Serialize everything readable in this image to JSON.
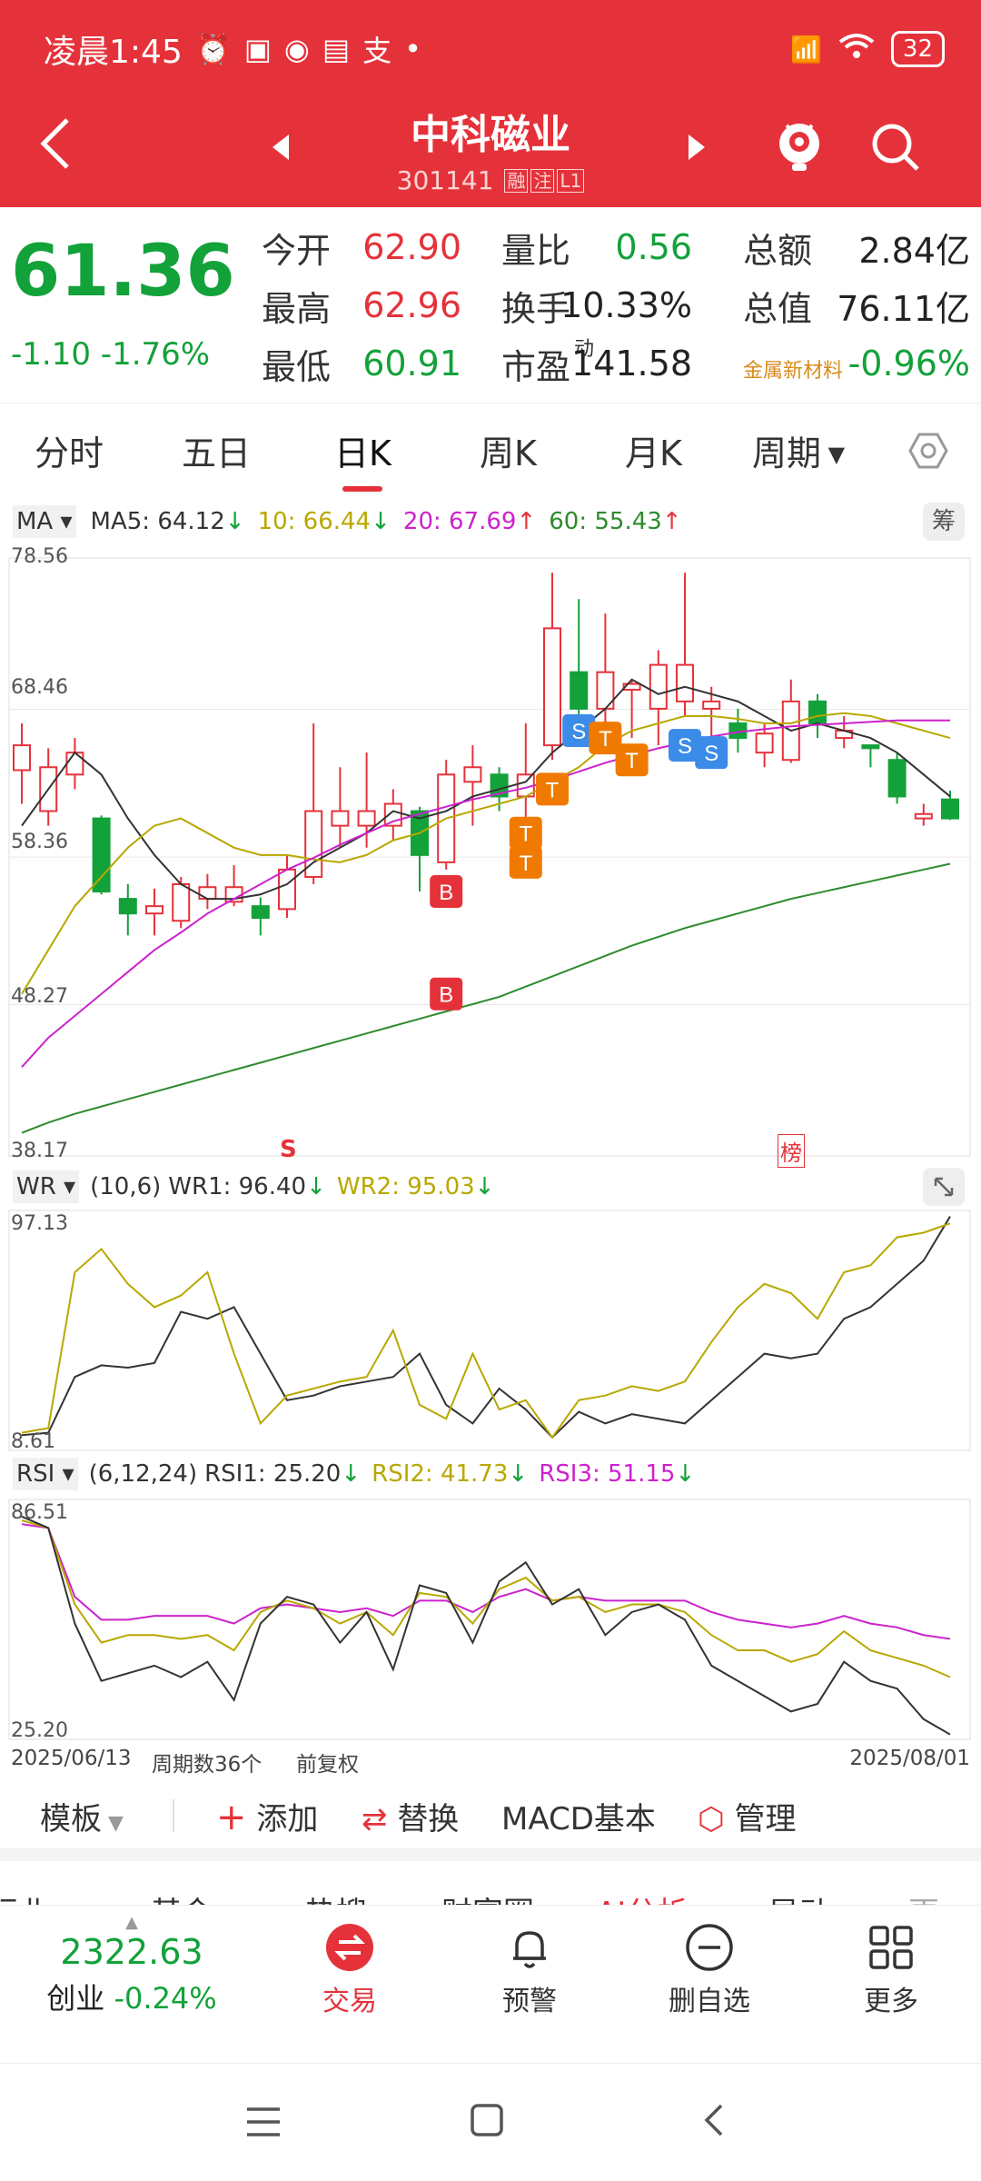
{
  "status_bar": {
    "time": "凌晨1:45",
    "battery": "32"
  },
  "header": {
    "title": "中科磁业",
    "code": "301141",
    "tags": [
      "融",
      "注",
      "L1"
    ]
  },
  "quote": {
    "price": "61.36",
    "change": "-1.10",
    "change_pct": "-1.76%",
    "rows": [
      [
        {
          "label": "今开",
          "value": "62.90",
          "color": "#e5323a"
        },
        {
          "label": "量比",
          "value": "0.56",
          "color": "#13a13a"
        },
        {
          "label": "总额",
          "value": "2.84亿",
          "color": "#222"
        }
      ],
      [
        {
          "label": "最高",
          "value": "62.96",
          "color": "#e5323a"
        },
        {
          "label": "换手",
          "value": "10.33%",
          "color": "#222"
        },
        {
          "label": "总值",
          "value": "76.11亿",
          "color": "#222"
        }
      ],
      [
        {
          "label": "最低",
          "value": "60.91",
          "color": "#13a13a"
        },
        {
          "label": "市盈",
          "label_sup": "动",
          "value": "141.58",
          "color": "#222"
        },
        {
          "label": "金属新材料",
          "value": "-0.96%",
          "color": "#13a13a"
        }
      ]
    ]
  },
  "tabs": [
    "分时",
    "五日",
    "日K",
    "周K",
    "月K",
    "周期"
  ],
  "active_tab": "日K",
  "ma_bar": {
    "selector": "MA",
    "ma5": "MA5: 64.12",
    "ma10": "10: 66.44",
    "ma20": "20: 67.69",
    "ma60": "60: 55.43",
    "chip": "筹"
  },
  "kline": {
    "y_labels": [
      "78.56",
      "68.46",
      "58.36",
      "48.27",
      "38.17"
    ],
    "s_mark": "S",
    "bang_mark": "榜",
    "markers": {
      "b": "B",
      "t": "T",
      "s": "S"
    }
  },
  "wr_bar": {
    "selector": "WR",
    "params": "(10,6)",
    "wr1": "WR1: 96.40",
    "wr2": "WR2: 95.03",
    "y_top": "97.13",
    "y_bottom": "8.61"
  },
  "rsi_bar": {
    "selector": "RSI",
    "params": "(6,12,24)",
    "rsi1": "RSI1: 25.20",
    "rsi2": "RSI2: 41.73",
    "rsi3": "RSI3: 51.15",
    "y_top": "86.51",
    "y_bottom": "25.20"
  },
  "date_bar": {
    "start": "2025/06/13",
    "weeks": "周期数36个",
    "adj": "前复权",
    "end": "2025/08/01"
  },
  "toolbar": {
    "template": "模板",
    "add": "添加",
    "replace": "替换",
    "macd": "MACD基本",
    "manage": "管理"
  },
  "scroll_tabs": [
    "行业",
    "基金",
    "热搜",
    "财富圈",
    "AI分析",
    "异动",
    "更"
  ],
  "bottom": {
    "index_value": "2322.63",
    "index_name": "创业",
    "index_chg": "-0.24%",
    "trade": "交易",
    "alert": "预警",
    "remove": "删自选",
    "more": "更多"
  },
  "colors": {
    "up": "#e5323a",
    "down": "#13a13a",
    "ma5": "#333333",
    "ma10": "#b8a800",
    "ma20": "#cc22cc",
    "ma60": "#2e8b2e"
  }
}
